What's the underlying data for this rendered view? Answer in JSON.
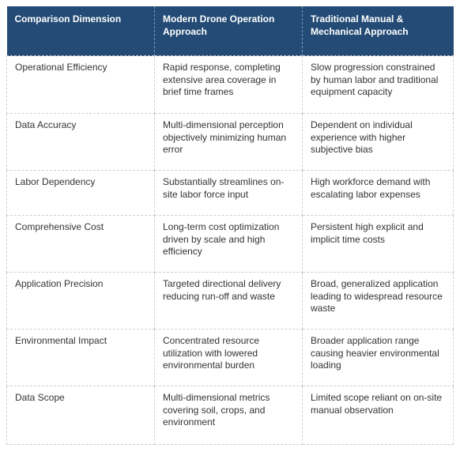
{
  "table": {
    "header": [
      "Comparison Dimension",
      "Modern Drone Operation Approach",
      "Traditional Manual & Mechanical Approach"
    ],
    "rows": [
      [
        "Operational Efficiency",
        "Rapid response, completing extensive area coverage in brief time frames",
        "Slow progression constrained by human labor and traditional equipment capacity"
      ],
      [
        "Data Accuracy",
        "Multi-dimensional perception objectively minimizing human error",
        "Dependent on individual experience with higher subjective bias"
      ],
      [
        "Labor Dependency",
        "Substantially streamlines on-site labor force input",
        "High workforce demand with escalating labor expenses"
      ],
      [
        "Comprehensive Cost",
        "Long-term cost optimization driven by scale and high efficiency",
        "Persistent high explicit and implicit time costs"
      ],
      [
        "Application Precision",
        "Targeted directional delivery reducing run-off and waste",
        "Broad, generalized application leading to widespread resource waste"
      ],
      [
        "Environmental Impact",
        "Concentrated resource utilization with lowered environmental burden",
        "Broader application range causing heavier environmental loading"
      ],
      [
        "Data Scope",
        "Multi-dimensional metrics covering soil, crops, and environment",
        "Limited scope reliant on on-site manual observation"
      ]
    ]
  }
}
